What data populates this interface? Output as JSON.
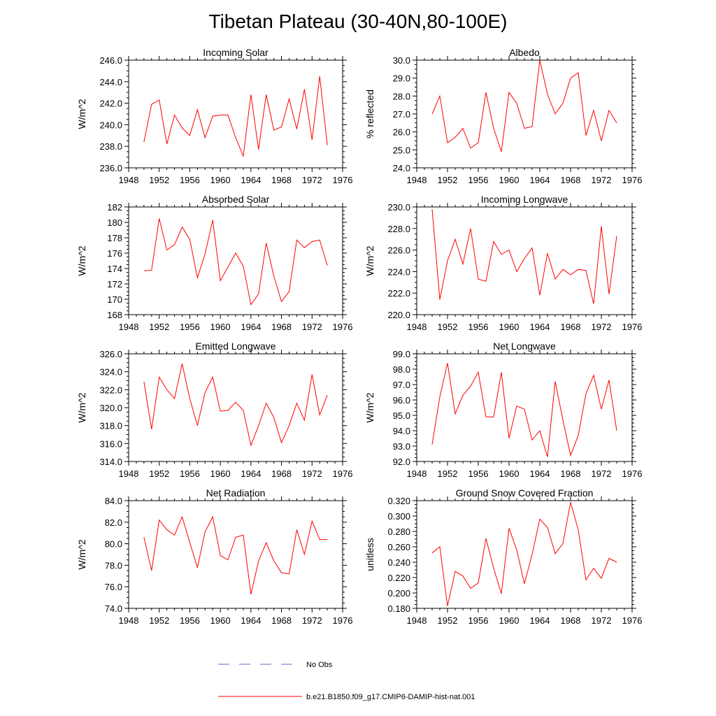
{
  "title": "Tibetan Plateau (30-40N,80-100E)",
  "colors": {
    "model": "#ff0000",
    "obs": "#6666cc",
    "axis": "#000000"
  },
  "legend": {
    "obs_label": "No Obs",
    "model_label": "b.e21.B1850.f09_g17.CMIP6-DAMIP-hist-nat.001"
  },
  "chart_data": [
    {
      "type": "line",
      "title": "Incoming Solar",
      "xlabel": "",
      "ylabel": "W/m^2",
      "xlim": [
        1948,
        1976
      ],
      "ylim": [
        236,
        246
      ],
      "xticks": [
        1948,
        1952,
        1956,
        1960,
        1964,
        1968,
        1972,
        1976
      ],
      "xtick_labels": [
        "1948",
        "1952",
        "1956",
        "1960",
        "1964",
        "1968",
        "1972",
        "1976"
      ],
      "yticks": [
        236,
        238,
        240,
        242,
        244,
        246
      ],
      "ytick_labels": [
        "236.0",
        "238.0",
        "240.0",
        "242.0",
        "244.0",
        "246.0"
      ],
      "x": [
        1950,
        1951,
        1952,
        1953,
        1954,
        1955,
        1956,
        1957,
        1958,
        1959,
        1960,
        1961,
        1962,
        1963,
        1964,
        1965,
        1966,
        1967,
        1968,
        1969,
        1970,
        1971,
        1972,
        1973,
        1974
      ],
      "series": [
        {
          "values": [
            238.4,
            241.9,
            242.3,
            238.2,
            240.9,
            239.7,
            239.0,
            241.4,
            238.8,
            240.8,
            240.9,
            240.9,
            238.8,
            237.1,
            242.8,
            237.7,
            242.8,
            239.5,
            239.8,
            242.4,
            239.6,
            243.3,
            238.6,
            244.5,
            238.1
          ]
        }
      ]
    },
    {
      "type": "line",
      "title": "Albedo",
      "xlabel": "",
      "ylabel": "% reflected",
      "xlim": [
        1948,
        1976
      ],
      "ylim": [
        24,
        30
      ],
      "xticks": [
        1948,
        1952,
        1956,
        1960,
        1964,
        1968,
        1972,
        1976
      ],
      "xtick_labels": [
        "1948",
        "1952",
        "1956",
        "1960",
        "1964",
        "1968",
        "1972",
        "1976"
      ],
      "yticks": [
        24,
        25,
        26,
        27,
        28,
        29,
        30
      ],
      "ytick_labels": [
        "24.0",
        "25.0",
        "26.0",
        "27.0",
        "28.0",
        "29.0",
        "30.0"
      ],
      "x": [
        1950,
        1951,
        1952,
        1953,
        1954,
        1955,
        1956,
        1957,
        1958,
        1959,
        1960,
        1961,
        1962,
        1963,
        1964,
        1965,
        1966,
        1967,
        1968,
        1969,
        1970,
        1971,
        1972,
        1973,
        1974
      ],
      "series": [
        {
          "values": [
            27.0,
            28.0,
            25.4,
            25.7,
            26.2,
            25.1,
            25.4,
            28.2,
            26.2,
            24.9,
            28.2,
            27.6,
            26.2,
            26.3,
            30.0,
            28.1,
            27.0,
            27.6,
            29.0,
            29.3,
            25.8,
            27.2,
            25.5,
            27.2,
            26.5
          ]
        }
      ]
    },
    {
      "type": "line",
      "title": "Absorbed Solar",
      "xlabel": "",
      "ylabel": "W/m^2",
      "xlim": [
        1948,
        1976
      ],
      "ylim": [
        168,
        182
      ],
      "xticks": [
        1948,
        1952,
        1956,
        1960,
        1964,
        1968,
        1972,
        1976
      ],
      "xtick_labels": [
        "1948",
        "1952",
        "1956",
        "1960",
        "1964",
        "1968",
        "1972",
        "1976"
      ],
      "yticks": [
        168,
        170,
        172,
        174,
        176,
        178,
        180,
        182
      ],
      "ytick_labels": [
        "168",
        "170",
        "172",
        "174",
        "176",
        "178",
        "180",
        "182"
      ],
      "x": [
        1950,
        1951,
        1952,
        1953,
        1954,
        1955,
        1956,
        1957,
        1958,
        1959,
        1960,
        1961,
        1962,
        1963,
        1964,
        1965,
        1966,
        1967,
        1968,
        1969,
        1970,
        1971,
        1972,
        1973,
        1974
      ],
      "series": [
        {
          "values": [
            173.7,
            173.8,
            180.5,
            176.4,
            177.1,
            179.4,
            177.8,
            172.8,
            175.9,
            180.3,
            172.4,
            174.2,
            176.0,
            174.3,
            169.3,
            170.7,
            177.3,
            173.0,
            169.7,
            171.0,
            177.7,
            176.7,
            177.5,
            177.7,
            174.4
          ]
        }
      ]
    },
    {
      "type": "line",
      "title": "Incoming Longwave",
      "xlabel": "",
      "ylabel": "W/m^2",
      "xlim": [
        1948,
        1976
      ],
      "ylim": [
        220,
        230
      ],
      "xticks": [
        1948,
        1952,
        1956,
        1960,
        1964,
        1968,
        1972,
        1976
      ],
      "xtick_labels": [
        "1948",
        "1952",
        "1956",
        "1960",
        "1964",
        "1968",
        "1972",
        "1976"
      ],
      "yticks": [
        220,
        222,
        224,
        226,
        228,
        230
      ],
      "ytick_labels": [
        "220.0",
        "222.0",
        "224.0",
        "226.0",
        "228.0",
        "230.0"
      ],
      "x": [
        1950,
        1951,
        1952,
        1953,
        1954,
        1955,
        1956,
        1957,
        1958,
        1959,
        1960,
        1961,
        1962,
        1963,
        1964,
        1965,
        1966,
        1967,
        1968,
        1969,
        1970,
        1971,
        1972,
        1973,
        1974
      ],
      "series": [
        {
          "values": [
            229.8,
            221.4,
            225.0,
            227.0,
            224.7,
            228.0,
            223.3,
            223.1,
            226.8,
            225.6,
            226.0,
            224.0,
            225.2,
            226.2,
            221.8,
            225.7,
            223.3,
            224.2,
            223.7,
            224.2,
            224.1,
            221.0,
            228.2,
            221.9,
            227.3
          ]
        }
      ]
    },
    {
      "type": "line",
      "title": "Emitted Longwave",
      "xlabel": "",
      "ylabel": "W/m^2",
      "xlim": [
        1948,
        1976
      ],
      "ylim": [
        314,
        326
      ],
      "xticks": [
        1948,
        1952,
        1956,
        1960,
        1964,
        1968,
        1972,
        1976
      ],
      "xtick_labels": [
        "1948",
        "1952",
        "1956",
        "1960",
        "1964",
        "1968",
        "1972",
        "1976"
      ],
      "yticks": [
        314,
        316,
        318,
        320,
        322,
        324,
        326
      ],
      "ytick_labels": [
        "314.0",
        "316.0",
        "318.0",
        "320.0",
        "322.0",
        "324.0",
        "326.0"
      ],
      "x": [
        1950,
        1951,
        1952,
        1953,
        1954,
        1955,
        1956,
        1957,
        1958,
        1959,
        1960,
        1961,
        1962,
        1963,
        1964,
        1965,
        1966,
        1967,
        1968,
        1969,
        1970,
        1971,
        1972,
        1973,
        1974
      ],
      "series": [
        {
          "values": [
            322.9,
            317.6,
            323.4,
            322.0,
            321.0,
            324.9,
            321.0,
            318.0,
            321.7,
            323.4,
            319.6,
            319.7,
            320.6,
            319.7,
            315.8,
            318.0,
            320.5,
            318.9,
            316.1,
            318.0,
            320.5,
            318.6,
            323.7,
            319.2,
            321.4
          ]
        }
      ]
    },
    {
      "type": "line",
      "title": "Net Longwave",
      "xlabel": "",
      "ylabel": "W/m^2",
      "xlim": [
        1948,
        1976
      ],
      "ylim": [
        92,
        99
      ],
      "xticks": [
        1948,
        1952,
        1956,
        1960,
        1964,
        1968,
        1972,
        1976
      ],
      "xtick_labels": [
        "1948",
        "1952",
        "1956",
        "1960",
        "1964",
        "1968",
        "1972",
        "1976"
      ],
      "yticks": [
        92,
        93,
        94,
        95,
        96,
        97,
        98,
        99
      ],
      "ytick_labels": [
        "92.0",
        "93.0",
        "94.0",
        "95.0",
        "96.0",
        "97.0",
        "98.0",
        "99.0"
      ],
      "x": [
        1950,
        1951,
        1952,
        1953,
        1954,
        1955,
        1956,
        1957,
        1958,
        1959,
        1960,
        1961,
        1962,
        1963,
        1964,
        1965,
        1966,
        1967,
        1968,
        1969,
        1970,
        1971,
        1972,
        1973,
        1974
      ],
      "series": [
        {
          "values": [
            93.1,
            96.2,
            98.4,
            95.1,
            96.3,
            96.9,
            97.8,
            94.9,
            94.9,
            97.8,
            93.5,
            95.6,
            95.4,
            93.4,
            94.0,
            92.3,
            97.2,
            94.7,
            92.4,
            93.7,
            96.4,
            97.6,
            95.4,
            97.3,
            94.0
          ]
        }
      ]
    },
    {
      "type": "line",
      "title": "Net Radiation",
      "xlabel": "",
      "ylabel": "W/m^2",
      "xlim": [
        1948,
        1976
      ],
      "ylim": [
        74,
        84
      ],
      "xticks": [
        1948,
        1952,
        1956,
        1960,
        1964,
        1968,
        1972,
        1976
      ],
      "xtick_labels": [
        "1948",
        "1952",
        "1956",
        "1960",
        "1964",
        "1968",
        "1972",
        "1976"
      ],
      "yticks": [
        74,
        76,
        78,
        80,
        82,
        84
      ],
      "ytick_labels": [
        "74.0",
        "76.0",
        "78.0",
        "80.0",
        "82.0",
        "84.0"
      ],
      "x": [
        1950,
        1951,
        1952,
        1953,
        1954,
        1955,
        1956,
        1957,
        1958,
        1959,
        1960,
        1961,
        1962,
        1963,
        1964,
        1965,
        1966,
        1967,
        1968,
        1969,
        1970,
        1971,
        1972,
        1973,
        1974
      ],
      "series": [
        {
          "values": [
            80.6,
            77.5,
            82.2,
            81.3,
            80.8,
            82.5,
            80.1,
            77.8,
            81.1,
            82.5,
            78.9,
            78.5,
            80.6,
            80.8,
            75.3,
            78.4,
            80.1,
            78.4,
            77.3,
            77.2,
            81.3,
            79.0,
            82.1,
            80.4,
            80.4
          ]
        }
      ]
    },
    {
      "type": "line",
      "title": "Ground Snow Covered Fraction",
      "xlabel": "",
      "ylabel": "unitless",
      "xlim": [
        1948,
        1976
      ],
      "ylim": [
        0.18,
        0.32
      ],
      "xticks": [
        1948,
        1952,
        1956,
        1960,
        1964,
        1968,
        1972,
        1976
      ],
      "xtick_labels": [
        "1948",
        "1952",
        "1956",
        "1960",
        "1964",
        "1968",
        "1972",
        "1976"
      ],
      "yticks": [
        0.18,
        0.2,
        0.22,
        0.24,
        0.26,
        0.28,
        0.3,
        0.32
      ],
      "ytick_labels": [
        "0.180",
        "0.200",
        "0.220",
        "0.240",
        "0.260",
        "0.280",
        "0.300",
        "0.320"
      ],
      "x": [
        1950,
        1951,
        1952,
        1953,
        1954,
        1955,
        1956,
        1957,
        1958,
        1959,
        1960,
        1961,
        1962,
        1963,
        1964,
        1965,
        1966,
        1967,
        1968,
        1969,
        1970,
        1971,
        1972,
        1973,
        1974
      ],
      "series": [
        {
          "values": [
            0.252,
            0.26,
            0.183,
            0.228,
            0.222,
            0.206,
            0.213,
            0.271,
            0.232,
            0.199,
            0.284,
            0.256,
            0.212,
            0.25,
            0.296,
            0.285,
            0.251,
            0.264,
            0.318,
            0.282,
            0.217,
            0.232,
            0.219,
            0.245,
            0.24
          ]
        }
      ]
    }
  ]
}
